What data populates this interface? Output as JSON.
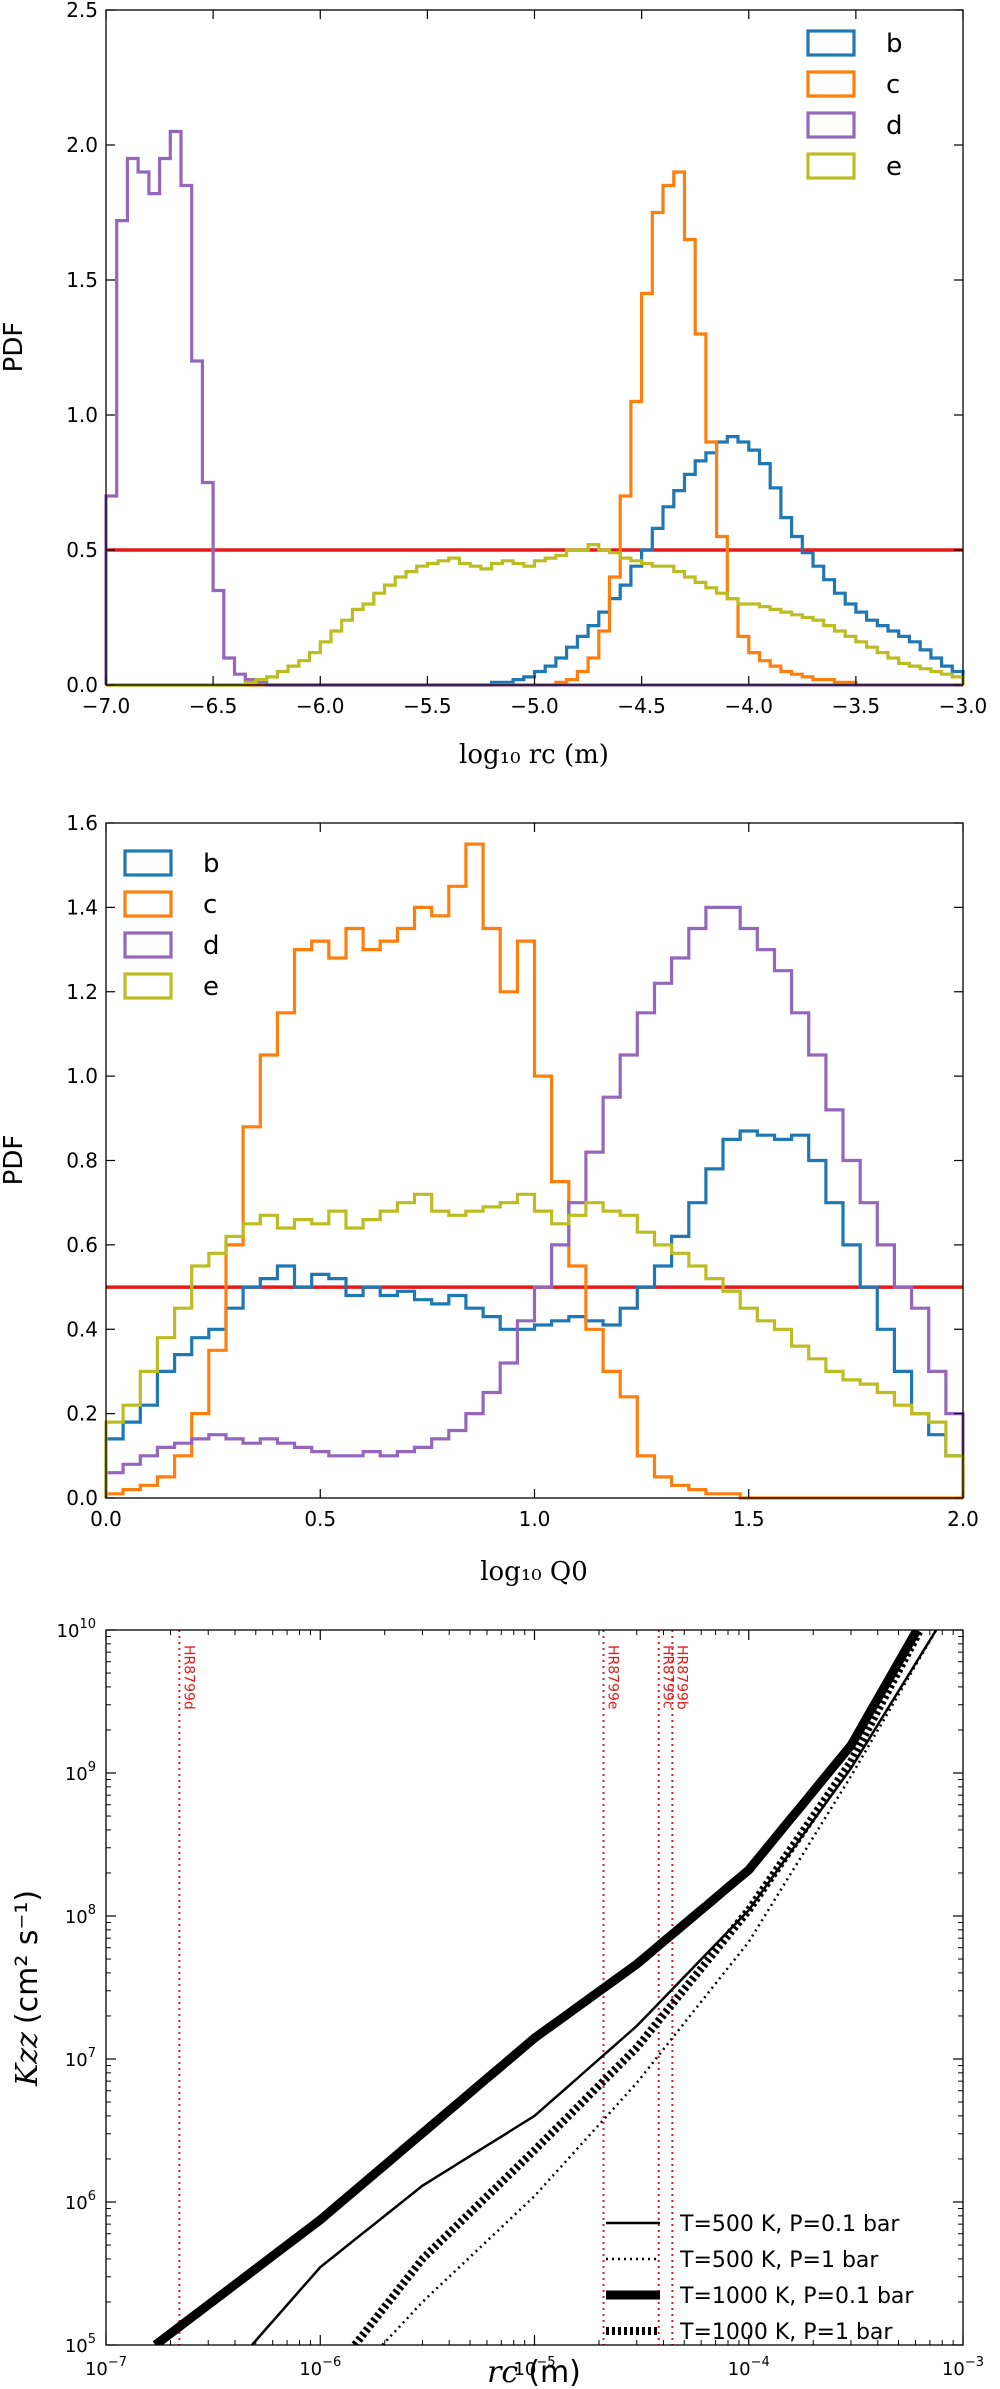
{
  "chart_data": [
    {
      "type": "line",
      "style": "step histogram",
      "xlabel": "log₁₀ rc (m)",
      "ylabel": "PDF",
      "xlim": [
        -7.0,
        -3.0
      ],
      "ylim": [
        0.0,
        2.5
      ],
      "xticks": [
        -7.0,
        -6.5,
        -6.0,
        -5.5,
        -5.0,
        -4.5,
        -4.0,
        -3.5,
        -3.0
      ],
      "xtick_labels": [
        "−7.0",
        "−6.5",
        "−6.0",
        "−5.5",
        "−5.0",
        "−4.5",
        "−4.0",
        "−3.5",
        "−3.0"
      ],
      "yticks": [
        0.0,
        0.5,
        1.0,
        1.5,
        2.0,
        2.5
      ],
      "ytick_labels": [
        "0.0",
        "0.5",
        "1.0",
        "1.5",
        "2.0",
        "2.5"
      ],
      "legend_position": "top-right",
      "hline": {
        "y": 0.5,
        "color": "#e41a1c"
      },
      "series": [
        {
          "name": "b",
          "color": "#1f77b4",
          "x0": -7.0,
          "binwidth": 0.05,
          "values": [
            0,
            0,
            0,
            0,
            0,
            0,
            0,
            0,
            0,
            0,
            0,
            0,
            0,
            0,
            0,
            0,
            0,
            0,
            0,
            0,
            0,
            0,
            0,
            0,
            0,
            0,
            0,
            0,
            0,
            0,
            0,
            0,
            0,
            0,
            0,
            0,
            0.01,
            0.01,
            0.02,
            0.03,
            0.05,
            0.07,
            0.1,
            0.14,
            0.18,
            0.22,
            0.27,
            0.32,
            0.37,
            0.44,
            0.5,
            0.58,
            0.66,
            0.72,
            0.78,
            0.83,
            0.86,
            0.9,
            0.92,
            0.9,
            0.87,
            0.82,
            0.73,
            0.62,
            0.55,
            0.49,
            0.44,
            0.39,
            0.34,
            0.3,
            0.27,
            0.24,
            0.22,
            0.2,
            0.18,
            0.16,
            0.13,
            0.1,
            0.07,
            0.05
          ]
        },
        {
          "name": "c",
          "color": "#ff7f0e",
          "x0": -7.0,
          "binwidth": 0.05,
          "values": [
            0,
            0,
            0,
            0,
            0,
            0,
            0,
            0,
            0,
            0,
            0,
            0,
            0,
            0,
            0,
            0,
            0,
            0,
            0,
            0,
            0,
            0,
            0,
            0,
            0,
            0,
            0,
            0,
            0,
            0,
            0,
            0,
            0,
            0,
            0,
            0,
            0,
            0,
            0,
            0,
            0,
            0,
            0.01,
            0.02,
            0.05,
            0.1,
            0.2,
            0.4,
            0.7,
            1.05,
            1.45,
            1.75,
            1.85,
            1.9,
            1.65,
            1.3,
            0.9,
            0.55,
            0.32,
            0.18,
            0.12,
            0.09,
            0.07,
            0.05,
            0.04,
            0.03,
            0.02,
            0.02,
            0.01,
            0.01,
            0,
            0,
            0,
            0,
            0,
            0,
            0,
            0,
            0,
            0
          ]
        },
        {
          "name": "d",
          "color": "#9467bd",
          "x0": -7.0,
          "binwidth": 0.05,
          "values": [
            0.7,
            1.72,
            1.95,
            1.9,
            1.82,
            1.95,
            2.05,
            1.85,
            1.2,
            0.75,
            0.35,
            0.1,
            0.04,
            0.02,
            0.01,
            0,
            0,
            0,
            0,
            0,
            0,
            0,
            0,
            0,
            0,
            0,
            0,
            0,
            0,
            0,
            0,
            0,
            0,
            0,
            0,
            0,
            0,
            0,
            0,
            0,
            0,
            0,
            0,
            0,
            0,
            0,
            0,
            0,
            0,
            0,
            0,
            0,
            0,
            0,
            0,
            0,
            0,
            0,
            0,
            0,
            0,
            0,
            0,
            0,
            0,
            0,
            0,
            0,
            0,
            0,
            0,
            0,
            0,
            0,
            0,
            0,
            0,
            0,
            0,
            0
          ]
        },
        {
          "name": "e",
          "color": "#bcbd22",
          "x0": -7.0,
          "binwidth": 0.05,
          "values": [
            0,
            0,
            0,
            0,
            0,
            0,
            0,
            0,
            0,
            0,
            0,
            0,
            0,
            0.01,
            0.02,
            0.03,
            0.05,
            0.07,
            0.09,
            0.12,
            0.16,
            0.2,
            0.24,
            0.28,
            0.3,
            0.34,
            0.37,
            0.4,
            0.42,
            0.44,
            0.45,
            0.46,
            0.47,
            0.45,
            0.44,
            0.43,
            0.45,
            0.46,
            0.45,
            0.44,
            0.46,
            0.47,
            0.48,
            0.5,
            0.5,
            0.52,
            0.5,
            0.49,
            0.47,
            0.46,
            0.45,
            0.44,
            0.44,
            0.42,
            0.4,
            0.38,
            0.36,
            0.34,
            0.32,
            0.3,
            0.3,
            0.29,
            0.28,
            0.27,
            0.26,
            0.25,
            0.24,
            0.22,
            0.2,
            0.18,
            0.16,
            0.14,
            0.12,
            0.1,
            0.08,
            0.07,
            0.06,
            0.05,
            0.04,
            0.03
          ]
        }
      ]
    },
    {
      "type": "line",
      "style": "step histogram",
      "xlabel": "log₁₀ Q0",
      "ylabel": "PDF",
      "xlim": [
        0.0,
        2.0
      ],
      "ylim": [
        0.0,
        1.6
      ],
      "xticks": [
        0.0,
        0.5,
        1.0,
        1.5,
        2.0
      ],
      "xtick_labels": [
        "0.0",
        "0.5",
        "1.0",
        "1.5",
        "2.0"
      ],
      "yticks": [
        0.0,
        0.2,
        0.4,
        0.6,
        0.8,
        1.0,
        1.2,
        1.4,
        1.6
      ],
      "ytick_labels": [
        "0.0",
        "0.2",
        "0.4",
        "0.6",
        "0.8",
        "1.0",
        "1.2",
        "1.4",
        "1.6"
      ],
      "legend_position": "top-left",
      "hline": {
        "y": 0.5,
        "color": "#e41a1c"
      },
      "series": [
        {
          "name": "b",
          "color": "#1f77b4",
          "x0": 0.0,
          "binwidth": 0.04,
          "values": [
            0.14,
            0.18,
            0.22,
            0.3,
            0.34,
            0.38,
            0.4,
            0.45,
            0.5,
            0.52,
            0.55,
            0.5,
            0.53,
            0.52,
            0.48,
            0.5,
            0.48,
            0.49,
            0.47,
            0.46,
            0.48,
            0.45,
            0.43,
            0.4,
            0.4,
            0.41,
            0.42,
            0.43,
            0.42,
            0.41,
            0.45,
            0.5,
            0.55,
            0.62,
            0.7,
            0.78,
            0.85,
            0.87,
            0.86,
            0.85,
            0.86,
            0.8,
            0.7,
            0.6,
            0.5,
            0.4,
            0.3,
            0.2,
            0.15,
            0.1
          ]
        },
        {
          "name": "c",
          "color": "#ff7f0e",
          "x0": 0.0,
          "binwidth": 0.04,
          "values": [
            0.01,
            0.02,
            0.03,
            0.05,
            0.1,
            0.2,
            0.35,
            0.6,
            0.88,
            1.05,
            1.15,
            1.3,
            1.32,
            1.28,
            1.35,
            1.3,
            1.32,
            1.35,
            1.4,
            1.38,
            1.45,
            1.55,
            1.35,
            1.2,
            1.32,
            1.0,
            0.75,
            0.55,
            0.4,
            0.3,
            0.24,
            0.1,
            0.05,
            0.03,
            0.02,
            0.01,
            0.01,
            0,
            0,
            0,
            0,
            0,
            0,
            0,
            0,
            0,
            0,
            0,
            0,
            0
          ]
        },
        {
          "name": "d",
          "color": "#9467bd",
          "x0": 0.0,
          "binwidth": 0.04,
          "values": [
            0.06,
            0.08,
            0.1,
            0.12,
            0.13,
            0.14,
            0.15,
            0.14,
            0.13,
            0.14,
            0.13,
            0.12,
            0.11,
            0.1,
            0.1,
            0.11,
            0.1,
            0.11,
            0.12,
            0.14,
            0.16,
            0.2,
            0.25,
            0.32,
            0.42,
            0.5,
            0.6,
            0.7,
            0.82,
            0.95,
            1.05,
            1.15,
            1.22,
            1.28,
            1.35,
            1.4,
            1.4,
            1.35,
            1.3,
            1.25,
            1.15,
            1.05,
            0.92,
            0.8,
            0.7,
            0.6,
            0.5,
            0.45,
            0.3,
            0.2
          ]
        },
        {
          "name": "e",
          "color": "#bcbd22",
          "x0": 0.0,
          "binwidth": 0.04,
          "values": [
            0.18,
            0.22,
            0.3,
            0.38,
            0.45,
            0.55,
            0.58,
            0.62,
            0.65,
            0.67,
            0.64,
            0.66,
            0.65,
            0.68,
            0.64,
            0.66,
            0.68,
            0.7,
            0.72,
            0.68,
            0.67,
            0.68,
            0.69,
            0.7,
            0.72,
            0.68,
            0.65,
            0.67,
            0.7,
            0.68,
            0.67,
            0.63,
            0.6,
            0.58,
            0.55,
            0.52,
            0.49,
            0.45,
            0.42,
            0.4,
            0.36,
            0.33,
            0.3,
            0.28,
            0.27,
            0.25,
            0.22,
            0.2,
            0.18,
            0.1
          ]
        }
      ]
    },
    {
      "type": "line",
      "xscale": "log",
      "yscale": "log",
      "xlabel_main": "rc",
      "xlabel_unit": "(m)",
      "ylabel_main": "Kzz",
      "ylabel_unit": "(cm² s⁻¹)",
      "xlim": [
        1e-07,
        0.001
      ],
      "ylim": [
        100000.0,
        10000000000.0
      ],
      "xticks": [
        1e-07,
        1e-06,
        1e-05,
        0.0001,
        0.001
      ],
      "yticks": [
        100000.0,
        1000000.0,
        10000000.0,
        100000000.0,
        1000000000.0,
        10000000000.0
      ],
      "legend_position": "bottom-right",
      "planet_lines": [
        {
          "label": "HR8799d",
          "x": 2.2e-07,
          "color": "#e41a1c"
        },
        {
          "label": "HR8799e",
          "x": 2.1e-05,
          "color": "#e41a1c"
        },
        {
          "label": "HR8799c",
          "x": 3.8e-05,
          "color": "#e41a1c"
        },
        {
          "label": "HR8799b",
          "x": 4.4e-05,
          "color": "#e41a1c"
        }
      ],
      "series": [
        {
          "name": "T=500 K, P=0.1 bar",
          "style": "solid-thin",
          "A": 25000000000.0,
          "B": 0.0002,
          "x": [
            4.8e-07,
            1e-06,
            3e-06,
            1e-05,
            3e-05,
            0.0001,
            0.0003,
            0.00075
          ],
          "y": [
            100000.0,
            350000.0,
            1300000.0,
            4000000.0,
            17000000.0,
            110000000.0,
            1080000000.0,
            10000000000.0
          ]
        },
        {
          "name": "T=500 K, P=1 bar",
          "style": "dotted-thin",
          "A": 25000000000.0,
          "B": 0.0002,
          "x": [
            1.95e-06,
            3e-06,
            1e-05,
            3e-05,
            0.0001,
            0.0003,
            0.00075
          ],
          "y": [
            100000.0,
            200000.0,
            1100000.0,
            6800000.0,
            66000000.0,
            950000000.0,
            10000000000.0
          ]
        },
        {
          "name": "T=1000 K, P=0.1 bar",
          "style": "solid-thick",
          "A": 22500000000.0,
          "B": 0.00053,
          "x": [
            1.7e-07,
            1e-06,
            1e-05,
            3e-05,
            0.0001,
            0.0003,
            0.00061
          ],
          "y": [
            100000.0,
            750000.0,
            14000000.0,
            46000000.0,
            210000000.0,
            1560000000.0,
            10000000000.0
          ]
        },
        {
          "name": "T=1000 K, P=1 bar",
          "style": "dotted-thick",
          "A": 22500000000.0,
          "B": 0.00053,
          "x": [
            1.45e-06,
            3e-06,
            1e-05,
            3e-05,
            0.0001,
            0.0003,
            0.00063
          ],
          "y": [
            100000.0,
            400000.0,
            2300000.0,
            12000000.0,
            110000000.0,
            1200000000.0,
            10000000000.0
          ]
        }
      ]
    }
  ]
}
